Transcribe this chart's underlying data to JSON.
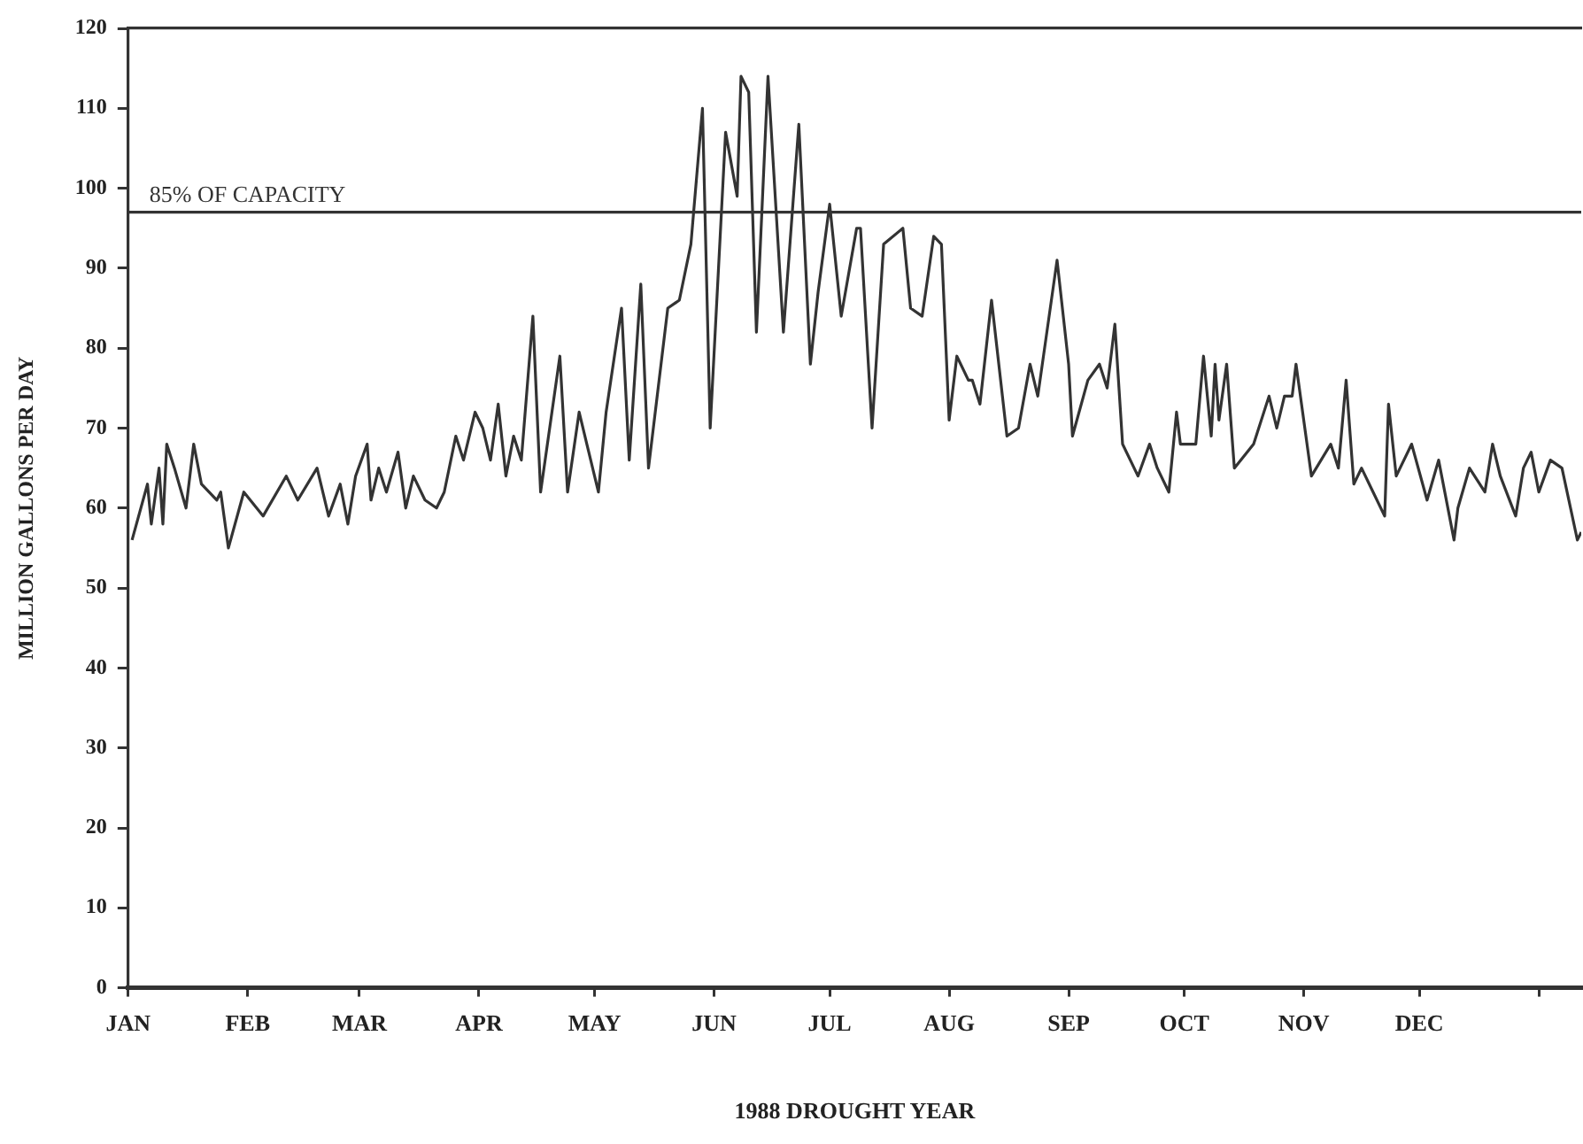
{
  "chart_data": {
    "type": "line",
    "xlabel": "1988 DROUGHT YEAR",
    "ylabel": "MILLION GALLONS PER DAY",
    "x": [
      "1988-01-02",
      "1988-01-06",
      "1988-01-07",
      "1988-01-09",
      "1988-01-10",
      "1988-01-11",
      "1988-01-13",
      "1988-01-16",
      "1988-01-18",
      "1988-01-20",
      "1988-01-24",
      "1988-01-25",
      "1988-01-27",
      "1988-01-31",
      "1988-02-05",
      "1988-02-11",
      "1988-02-14",
      "1988-02-19",
      "1988-02-22",
      "1988-02-25",
      "1988-02-27",
      "1988-02-29",
      "1988-03-03",
      "1988-03-04",
      "1988-03-06",
      "1988-03-08",
      "1988-03-11",
      "1988-03-13",
      "1988-03-15",
      "1988-03-18",
      "1988-03-21",
      "1988-03-23",
      "1988-03-26",
      "1988-03-28",
      "1988-03-31",
      "1988-04-02",
      "1988-04-04",
      "1988-04-06",
      "1988-04-08",
      "1988-04-10",
      "1988-04-12",
      "1988-04-15",
      "1988-04-17",
      "1988-04-22",
      "1988-04-24",
      "1988-04-27",
      "1988-04-29",
      "1988-05-02",
      "1988-05-04",
      "1988-05-08",
      "1988-05-10",
      "1988-05-13",
      "1988-05-15",
      "1988-05-20",
      "1988-05-23",
      "1988-05-26",
      "1988-05-29",
      "1988-05-31",
      "1988-06-04",
      "1988-06-07",
      "1988-06-08",
      "1988-06-10",
      "1988-06-12",
      "1988-06-15",
      "1988-06-19",
      "1988-06-23",
      "1988-06-26",
      "1988-06-28",
      "1988-07-01",
      "1988-07-04",
      "1988-07-08",
      "1988-07-09",
      "1988-07-12",
      "1988-07-15",
      "1988-07-20",
      "1988-07-22",
      "1988-07-25",
      "1988-07-28",
      "1988-07-30",
      "1988-08-01",
      "1988-08-03",
      "1988-08-06",
      "1988-08-07",
      "1988-08-09",
      "1988-08-12",
      "1988-08-16",
      "1988-08-19",
      "1988-08-22",
      "1988-08-24",
      "1988-08-29",
      "1988-09-01",
      "1988-09-02",
      "1988-09-06",
      "1988-09-09",
      "1988-09-11",
      "1988-09-13",
      "1988-09-15",
      "1988-09-19",
      "1988-09-22",
      "1988-09-24",
      "1988-09-27",
      "1988-09-29",
      "1988-09-30",
      "1988-10-04",
      "1988-10-06",
      "1988-10-08",
      "1988-10-09",
      "1988-10-10",
      "1988-10-12",
      "1988-10-14",
      "1988-10-19",
      "1988-10-23",
      "1988-10-25",
      "1988-10-27",
      "1988-10-29",
      "1988-10-30",
      "1988-11-03",
      "1988-11-08",
      "1988-11-10",
      "1988-11-12",
      "1988-11-14",
      "1988-11-16",
      "1988-11-19",
      "1988-11-22",
      "1988-11-23",
      "1988-11-25",
      "1988-11-29",
      "1988-12-03",
      "1988-12-06",
      "1988-12-10",
      "1988-12-11",
      "1988-12-14",
      "1988-12-18",
      "1988-12-20",
      "1988-12-22",
      "1988-12-26",
      "1988-12-28",
      "1988-12-30",
      "1989-01-01",
      "1989-01-04",
      "1989-01-07",
      "1989-01-11",
      "1989-01-12"
    ],
    "series": [
      {
        "color": "#333333",
        "values": [
          56,
          63,
          58,
          65,
          58,
          68,
          65,
          60,
          68,
          63,
          61,
          62,
          55,
          62,
          59,
          64,
          61,
          65,
          59,
          63,
          58,
          64,
          68,
          61,
          65,
          62,
          67,
          60,
          64,
          61,
          60,
          62,
          69,
          66,
          72,
          70,
          66,
          73,
          64,
          69,
          66,
          84,
          62,
          79,
          62,
          72,
          68,
          62,
          72,
          85,
          66,
          88,
          65,
          85,
          86,
          93,
          110,
          70,
          107,
          99,
          114,
          112,
          82,
          114,
          82,
          108,
          78,
          87,
          98,
          84,
          95,
          95,
          70,
          93,
          95,
          85,
          84,
          94,
          93,
          71,
          79,
          76,
          76,
          73,
          86,
          69,
          70,
          78,
          74,
          91,
          78,
          69,
          76,
          78,
          75,
          83,
          68,
          64,
          68,
          65,
          62,
          72,
          68,
          68,
          79,
          69,
          78,
          71,
          78,
          65,
          68,
          74,
          70,
          74,
          74,
          78,
          64,
          68,
          65,
          76,
          63,
          65,
          62,
          59,
          73,
          64,
          68,
          61,
          66,
          56,
          60,
          65,
          62,
          68,
          64,
          59,
          65,
          67,
          62,
          66,
          65,
          56,
          57
        ]
      }
    ],
    "xlim": [
      "1988-01-01",
      "1989-01-12"
    ],
    "xticks": [
      {
        "value": "1988-01-01",
        "label": "JAN"
      },
      {
        "value": "1988-02-01",
        "label": "FEB"
      },
      {
        "value": "1988-03-01",
        "label": "MAR"
      },
      {
        "value": "1988-04-01",
        "label": "APR"
      },
      {
        "value": "1988-05-01",
        "label": "MAY"
      },
      {
        "value": "1988-06-01",
        "label": "JUN"
      },
      {
        "value": "1988-07-01",
        "label": "JUL"
      },
      {
        "value": "1988-08-01",
        "label": "AUG"
      },
      {
        "value": "1988-09-01",
        "label": "SEP"
      },
      {
        "value": "1988-10-01",
        "label": "OCT"
      },
      {
        "value": "1988-11-01",
        "label": "NOV"
      },
      {
        "value": "1988-12-01",
        "label": "DEC"
      },
      {
        "value": "1989-01-01",
        "label": null
      }
    ],
    "ylim": [
      0,
      120
    ],
    "yticks": [
      0,
      10,
      20,
      30,
      40,
      50,
      60,
      70,
      80,
      90,
      100,
      110,
      120
    ],
    "ref_lines": [
      {
        "axis": "y",
        "value": 97,
        "label": "85% OF CAPACITY",
        "color": "#333333"
      }
    ],
    "grid": false,
    "legend": false,
    "marker": "none",
    "line_style": "solid"
  }
}
